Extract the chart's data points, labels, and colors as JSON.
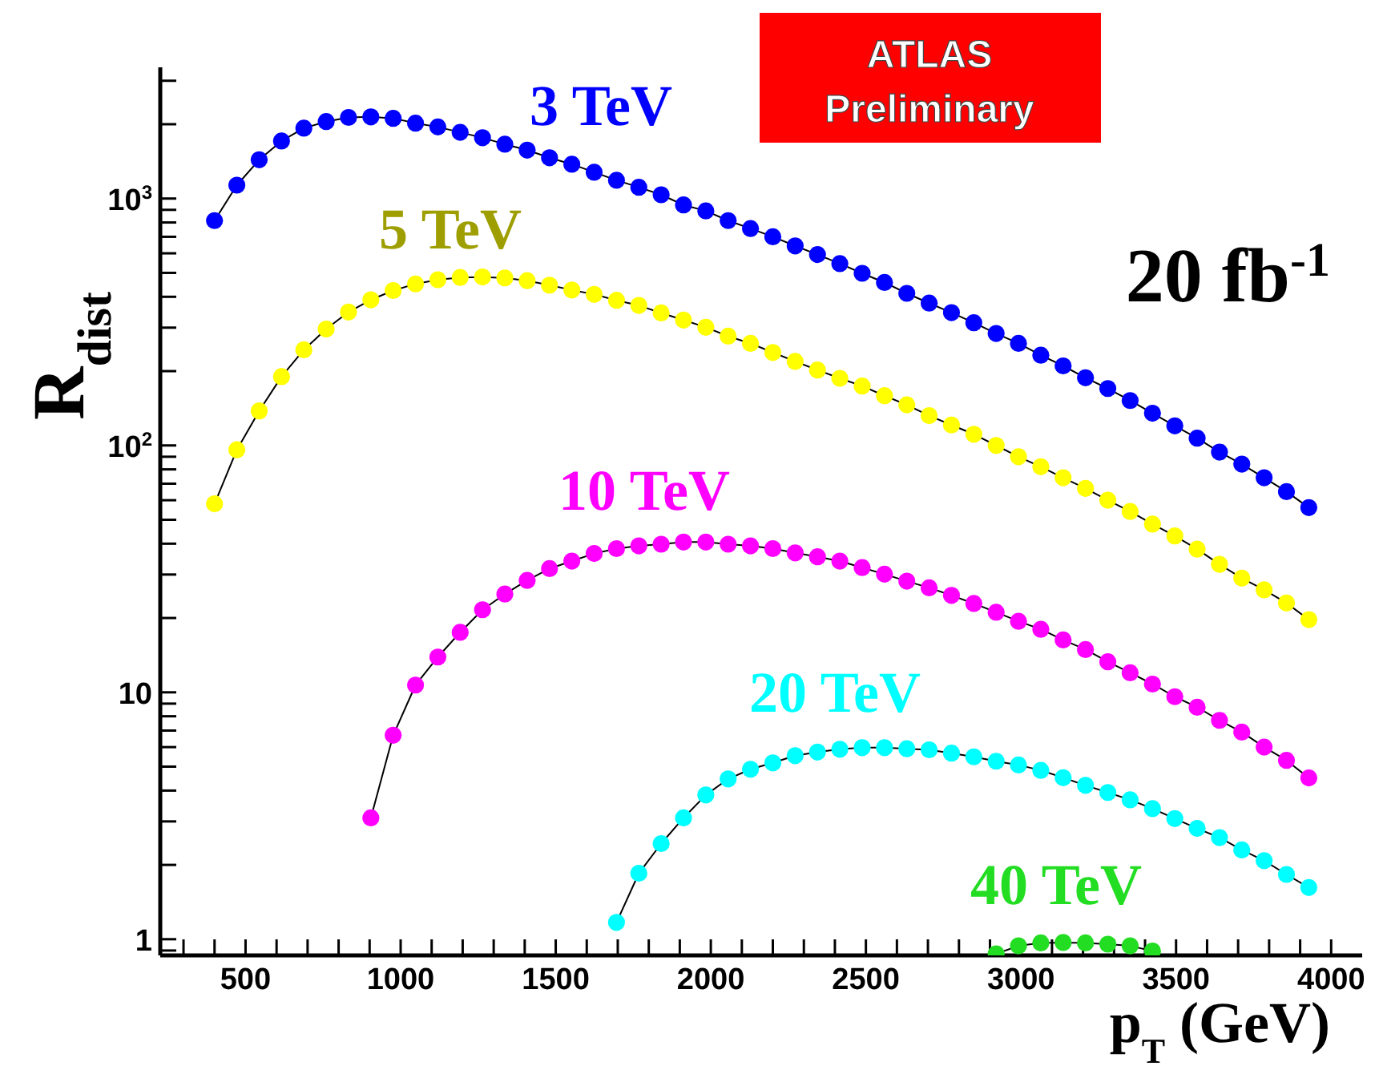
{
  "chart_data": {
    "type": "line",
    "xlabel": "p$_{T}$ (GeV)",
    "ylabel": "R$_{dist}$",
    "log": "y",
    "marker": "circle",
    "line_style": "solid",
    "annotations": [
      "ATLAS Preliminary",
      "20 fb$^{-1}$"
    ],
    "xlim": [
      225,
      4100
    ],
    "xticks": [
      {
        "value": 300,
        "label": null
      },
      {
        "value": 400,
        "label": null
      },
      500,
      {
        "value": 600,
        "label": null
      },
      {
        "value": 700,
        "label": null
      },
      {
        "value": 800,
        "label": null
      },
      {
        "value": 900,
        "label": null
      },
      1000,
      {
        "value": 1100,
        "label": null
      },
      {
        "value": 1200,
        "label": null
      },
      {
        "value": 1300,
        "label": null
      },
      {
        "value": 1400,
        "label": null
      },
      1500,
      {
        "value": 1600,
        "label": null
      },
      {
        "value": 1700,
        "label": null
      },
      {
        "value": 1800,
        "label": null
      },
      {
        "value": 1900,
        "label": null
      },
      2000,
      {
        "value": 2100,
        "label": null
      },
      {
        "value": 2200,
        "label": null
      },
      {
        "value": 2300,
        "label": null
      },
      {
        "value": 2400,
        "label": null
      },
      2500,
      {
        "value": 2600,
        "label": null
      },
      {
        "value": 2700,
        "label": null
      },
      {
        "value": 2800,
        "label": null
      },
      {
        "value": 2900,
        "label": null
      },
      3000,
      {
        "value": 3100,
        "label": null
      },
      {
        "value": 3200,
        "label": null
      },
      {
        "value": 3300,
        "label": null
      },
      {
        "value": 3400,
        "label": null
      },
      3500,
      {
        "value": 3600,
        "label": null
      },
      {
        "value": 3700,
        "label": null
      },
      {
        "value": 3800,
        "label": null
      },
      {
        "value": 3900,
        "label": null
      },
      4000
    ],
    "ylim": [
      0.86,
      3400
    ],
    "yticks": [
      {
        "value": 0.9,
        "label": null
      },
      1,
      {
        "value": 2,
        "label": null
      },
      {
        "value": 3,
        "label": null
      },
      {
        "value": 4,
        "label": null
      },
      {
        "value": 5,
        "label": null
      },
      {
        "value": 6,
        "label": null
      },
      {
        "value": 7,
        "label": null
      },
      {
        "value": 8,
        "label": null
      },
      {
        "value": 9,
        "label": null
      },
      10,
      {
        "value": 20,
        "label": null
      },
      {
        "value": 30,
        "label": null
      },
      {
        "value": 40,
        "label": null
      },
      {
        "value": 50,
        "label": null
      },
      {
        "value": 60,
        "label": null
      },
      {
        "value": 70,
        "label": null
      },
      {
        "value": 80,
        "label": null
      },
      {
        "value": 90,
        "label": null
      },
      {
        "value": 100,
        "label": "10$^{2}$"
      },
      {
        "value": 200,
        "label": null
      },
      {
        "value": 300,
        "label": null
      },
      {
        "value": 400,
        "label": null
      },
      {
        "value": 500,
        "label": null
      },
      {
        "value": 600,
        "label": null
      },
      {
        "value": 700,
        "label": null
      },
      {
        "value": 800,
        "label": null
      },
      {
        "value": 900,
        "label": null
      },
      {
        "value": 1000,
        "label": "10$^{3}$"
      },
      {
        "value": 2000,
        "label": null
      },
      {
        "value": 3000,
        "label": null
      }
    ],
    "series": [
      {
        "name": "3 TeV",
        "color": "#0000ff",
        "x": [
          400,
          472,
          544,
          616,
          688,
          760,
          832,
          904,
          976,
          1048,
          1120,
          1192,
          1264,
          1336,
          1408,
          1480,
          1552,
          1624,
          1696,
          1768,
          1840,
          1912,
          1984,
          2056,
          2128,
          2200,
          2272,
          2344,
          2416,
          2488,
          2560,
          2632,
          2704,
          2776,
          2848,
          2920,
          2992,
          3064,
          3136,
          3208,
          3280,
          3352,
          3424,
          3496,
          3568,
          3640,
          3712,
          3784,
          3856,
          3928
        ],
        "values": [
          814,
          1133,
          1436,
          1710,
          1928,
          2050,
          2131,
          2142,
          2113,
          2019,
          1950,
          1854,
          1763,
          1660,
          1571,
          1463,
          1377,
          1278,
          1186,
          1111,
          1036,
          942,
          891,
          814,
          756,
          700,
          643,
          593,
          545,
          498,
          457,
          413,
          377,
          345,
          314,
          284,
          259,
          232,
          210,
          188,
          170,
          152,
          135,
          120,
          107,
          94,
          84,
          74,
          65,
          56
        ]
      },
      {
        "name": "5 TeV",
        "color": "#ffff00",
        "x": [
          400,
          472,
          544,
          616,
          688,
          760,
          832,
          904,
          976,
          1048,
          1120,
          1192,
          1264,
          1336,
          1408,
          1480,
          1552,
          1624,
          1696,
          1768,
          1840,
          1912,
          1984,
          2056,
          2128,
          2200,
          2272,
          2344,
          2416,
          2488,
          2560,
          2632,
          2704,
          2776,
          2848,
          2920,
          2992,
          3064,
          3136,
          3208,
          3280,
          3352,
          3424,
          3496,
          3568,
          3640,
          3712,
          3784,
          3856,
          3928
        ],
        "values": [
          58,
          96,
          138,
          190,
          244,
          296,
          347,
          389,
          424,
          451,
          469,
          479,
          481,
          477,
          465,
          446,
          426,
          409,
          387,
          369,
          344,
          322,
          301,
          277,
          259,
          238,
          219,
          202,
          187,
          174,
          159,
          146,
          132,
          121,
          111,
          100,
          90,
          82,
          74,
          67,
          60,
          54,
          48,
          43,
          38,
          33,
          29,
          26,
          23,
          19.7
        ]
      },
      {
        "name": "10 TeV",
        "color": "#ff00ff",
        "x": [
          904,
          976,
          1048,
          1120,
          1192,
          1264,
          1336,
          1408,
          1480,
          1552,
          1624,
          1696,
          1768,
          1840,
          1912,
          1984,
          2056,
          2128,
          2200,
          2272,
          2344,
          2416,
          2488,
          2560,
          2632,
          2704,
          2776,
          2848,
          2920,
          2992,
          3064,
          3136,
          3208,
          3280,
          3352,
          3424,
          3496,
          3568,
          3640,
          3712,
          3784,
          3856,
          3928
        ],
        "values": [
          3.1,
          6.7,
          10.7,
          13.9,
          17.5,
          21.6,
          25,
          28.4,
          31.7,
          34,
          36.5,
          38.2,
          39.2,
          39.8,
          40.6,
          40.6,
          39.8,
          39.2,
          38.2,
          36.7,
          35.4,
          34,
          32,
          30.1,
          28.2,
          26.5,
          24.7,
          22.9,
          21.1,
          19.4,
          18,
          16.3,
          14.9,
          13.3,
          12,
          10.8,
          9.6,
          8.7,
          7.7,
          6.9,
          6.0,
          5.3,
          4.5
        ]
      },
      {
        "name": "20 TeV",
        "color": "#00ffff",
        "x": [
          1696,
          1768,
          1840,
          1912,
          1984,
          2056,
          2128,
          2200,
          2272,
          2344,
          2416,
          2488,
          2560,
          2632,
          2704,
          2776,
          2848,
          2920,
          2992,
          3064,
          3136,
          3208,
          3280,
          3352,
          3424,
          3496,
          3568,
          3640,
          3712,
          3784,
          3856,
          3928
        ],
        "values": [
          1.17,
          1.85,
          2.44,
          3.1,
          3.84,
          4.46,
          4.88,
          5.18,
          5.54,
          5.73,
          5.88,
          5.97,
          5.97,
          5.91,
          5.85,
          5.67,
          5.48,
          5.26,
          5.08,
          4.83,
          4.51,
          4.2,
          3.93,
          3.67,
          3.38,
          3.08,
          2.81,
          2.58,
          2.3,
          2.08,
          1.83,
          1.62
        ]
      },
      {
        "name": "40 TeV",
        "color": "#22dd22",
        "x": [
          2920,
          2992,
          3064,
          3136,
          3208,
          3280,
          3352,
          3424
        ],
        "values": [
          0.873,
          0.94,
          0.966,
          0.97,
          0.966,
          0.955,
          0.94,
          0.896
        ]
      }
    ]
  }
}
